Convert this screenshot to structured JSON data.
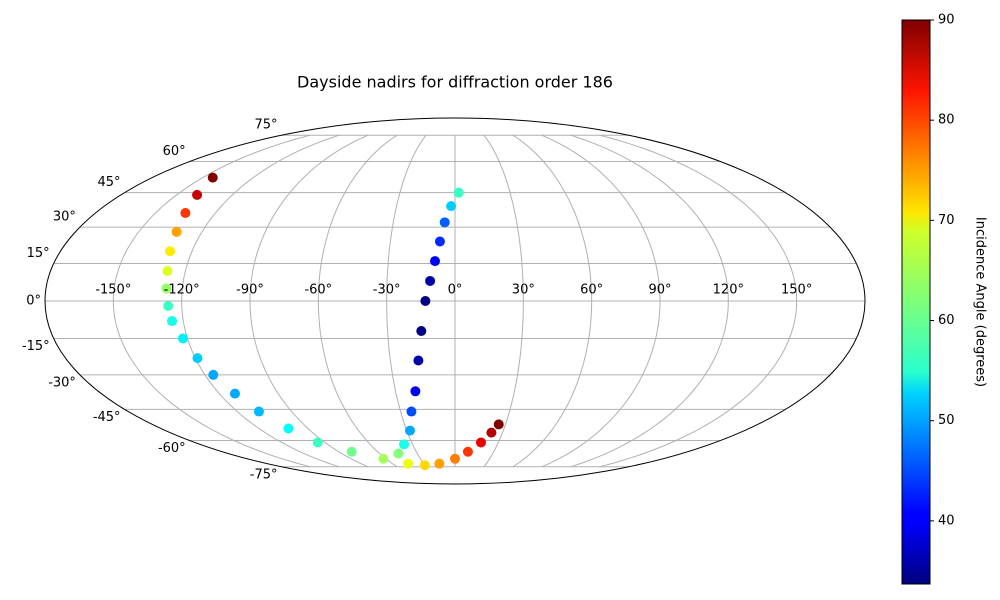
{
  "chart_data": {
    "type": "scatter",
    "title": "Dayside nadirs for diffraction order 186",
    "colorbar_label": "Incidence Angle (degrees)",
    "projection": "mollweide",
    "colormap": "jet",
    "grid": true,
    "xlim": [
      -180,
      180
    ],
    "ylim": [
      -90,
      90
    ],
    "xticks": [
      {
        "value": -150,
        "label": "-150°"
      },
      {
        "value": -120,
        "label": "-120°"
      },
      {
        "value": -90,
        "label": "-90°"
      },
      {
        "value": -60,
        "label": "-60°"
      },
      {
        "value": -30,
        "label": "-30°"
      },
      {
        "value": 0,
        "label": "0°"
      },
      {
        "value": 30,
        "label": "30°"
      },
      {
        "value": 60,
        "label": "60°"
      },
      {
        "value": 90,
        "label": "90°"
      },
      {
        "value": 120,
        "label": "120°"
      },
      {
        "value": 150,
        "label": "150°"
      }
    ],
    "yticks": [
      {
        "value": -75,
        "label": "-75°"
      },
      {
        "value": -60,
        "label": "-60°"
      },
      {
        "value": -45,
        "label": "-45°"
      },
      {
        "value": -30,
        "label": "-30°"
      },
      {
        "value": -15,
        "label": "-15°"
      },
      {
        "value": 0,
        "label": "0°"
      },
      {
        "value": 15,
        "label": "15°"
      },
      {
        "value": 30,
        "label": "30°"
      },
      {
        "value": 45,
        "label": "45°"
      },
      {
        "value": 60,
        "label": "60°"
      },
      {
        "value": 75,
        "label": "75°"
      }
    ],
    "clim": [
      33.7,
      90
    ],
    "cticks": [
      40,
      50,
      60,
      70,
      80,
      90
    ],
    "x": [
      -144,
      -139,
      -135,
      -132,
      -130,
      -128,
      -127,
      -126,
      -125,
      -122,
      -119,
      -116,
      -112,
      -108,
      -102,
      -95,
      -80,
      -62,
      -45,
      -30,
      -15,
      0,
      10,
      18,
      23,
      26,
      -45,
      -36,
      -28,
      -24,
      -20,
      -17,
      -15,
      -13,
      -11,
      -9,
      -7,
      -5,
      -2,
      2
    ],
    "y": [
      52,
      44,
      36,
      28,
      20,
      12,
      5,
      -2,
      -8,
      -15,
      -23,
      -30,
      -38,
      -46,
      -54,
      -61,
      -66,
      -70,
      -73,
      -74,
      -73,
      -70,
      -66,
      -61,
      -56,
      -52,
      -67,
      -62,
      -55,
      -46,
      -37,
      -24,
      -12,
      0,
      8,
      16,
      24,
      32,
      39,
      45
    ],
    "values": [
      90,
      86,
      80,
      74,
      70,
      67,
      63,
      58,
      56,
      54,
      52,
      50,
      50,
      51,
      55,
      58,
      61,
      64,
      68,
      71,
      74,
      76,
      80,
      84,
      87,
      90,
      62,
      56,
      50,
      45,
      40,
      36,
      34,
      34,
      36,
      40,
      43,
      46,
      52,
      58
    ]
  }
}
